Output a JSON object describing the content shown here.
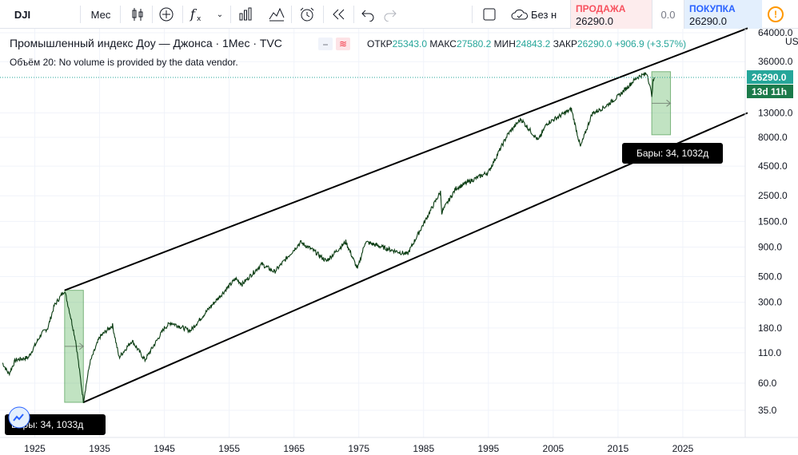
{
  "toolbar": {
    "symbol": "DJI",
    "interval": "Мес",
    "chart_type_icon": "candles-icon",
    "compare_icon": "add-symbol-icon",
    "indicators_icon": "fx-icon",
    "templates_icon": "bars-chart-icon",
    "alerts_icon": "alarm-clock-icon",
    "replay_icon": "rewind-icon",
    "undo_icon": "undo-icon",
    "redo_icon": "redo-icon",
    "checkbox_icon": "square-icon",
    "cloud_label": "Без н"
  },
  "trade": {
    "sell_label": "ПРОДАЖА",
    "sell_price": "26290.0",
    "spread": "0.0",
    "buy_label": "ПОКУПКА",
    "buy_price": "26290.0",
    "info": "!"
  },
  "legend": {
    "title": "Промышленный индекс Доу — Джонса · 1Мес · TVC",
    "open_label": "ОТКР",
    "open": "25343.0",
    "high_label": "МАКС",
    "high": "27580.2",
    "low_label": "МИН",
    "low": "24843.2",
    "close_label": "ЗАКР",
    "close": "26290.0",
    "change": "+906.9 (+3.57%)",
    "volume_line": "Объём 20: No volume is provided by the data vendor."
  },
  "price_scale": {
    "currency": "US",
    "ticks": [
      "64000.0",
      "36000.0",
      "13000.0",
      "8000.0",
      "4500.0",
      "2500.0",
      "1500.0",
      "900.0",
      "500.0",
      "300.0",
      "180.0",
      "110.0",
      "60.0",
      "35.0"
    ],
    "last_price_label": "26290.0",
    "countdown": "13d 11h",
    "colors": {
      "last_price_bg": "#26a69a",
      "countdown_bg": "#1b7a4a"
    }
  },
  "time_scale": {
    "ticks": [
      "1925",
      "1935",
      "1945",
      "1955",
      "1965",
      "1975",
      "1985",
      "1995",
      "2005",
      "2015",
      "2025"
    ]
  },
  "annotations": {
    "range1_label": "Бары: 34, 1033д",
    "range2_label": "Бары: 34, 1032д"
  },
  "chart_data": {
    "type": "line",
    "title": "Промышленный индекс Доу — Джонса · 1Мес · TVC",
    "log_scale": true,
    "series": [
      {
        "x": [
          1920,
          1921,
          1922,
          1924,
          1926,
          1927,
          1928,
          1929.6,
          1930.5,
          1931.3,
          1932.5,
          1933.5,
          1935,
          1937,
          1938,
          1940,
          1942,
          1945,
          1946,
          1949,
          1952,
          1956,
          1957,
          1960,
          1962,
          1966,
          1968,
          1970,
          1973,
          1974.8,
          1976,
          1980,
          1982.5,
          1987.6,
          1987.8,
          1990,
          1995,
          1998,
          2000,
          2002.7,
          2004,
          2007.8,
          2009.2,
          2011,
          2013,
          2015,
          2018,
          2019.5,
          2020.2,
          2020.4,
          2020.6
        ],
        "values": [
          90,
          72,
          95,
          100,
          160,
          180,
          280,
          381,
          230,
          140,
          42,
          90,
          150,
          190,
          100,
          140,
          95,
          180,
          200,
          170,
          270,
          480,
          430,
          640,
          550,
          990,
          840,
          680,
          1000,
          580,
          1000,
          850,
          780,
          2700,
          1800,
          2900,
          4000,
          8500,
          11500,
          7500,
          10500,
          14000,
          6600,
          12800,
          14700,
          18000,
          26500,
          28500,
          18500,
          24000,
          26290
        ]
      }
    ],
    "xlim": [
      1920,
      2035
    ],
    "ylim": [
      30,
      64000
    ],
    "channel_lines": [
      {
        "from": [
          1929.6,
          381
        ],
        "to": [
          2035,
          70000
        ]
      },
      {
        "from": [
          1932.5,
          41
        ],
        "to": [
          2035,
          13000
        ]
      }
    ],
    "range_boxes": [
      {
        "x": [
          1929.6,
          1932.5
        ],
        "y": [
          41,
          381
        ]
      },
      {
        "x": [
          2020.2,
          2023.1
        ],
        "y": [
          8400,
          29500
        ]
      }
    ]
  }
}
